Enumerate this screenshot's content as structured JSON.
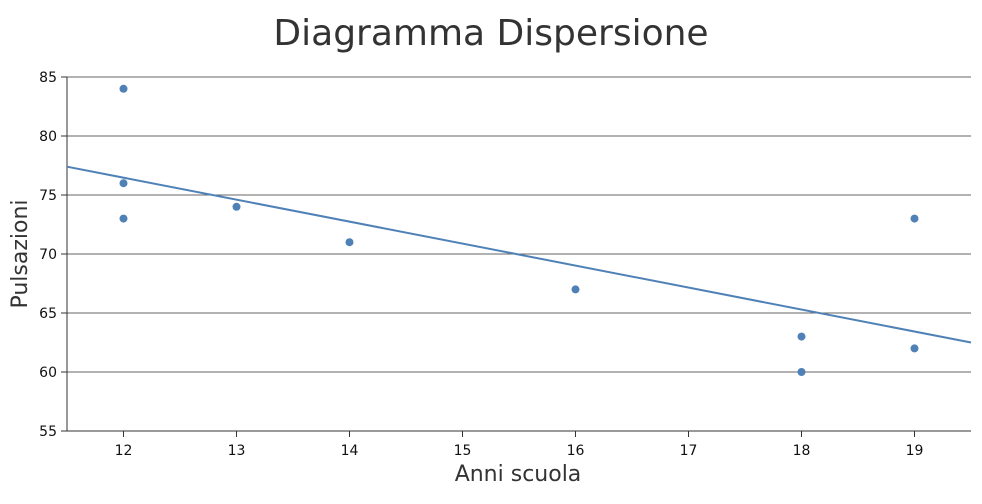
{
  "chart_data": {
    "type": "scatter",
    "title": "Diagramma Dispersione",
    "xlabel": "Anni scuola",
    "ylabel": "Pulsazioni",
    "xlim": [
      11.5,
      19.5
    ],
    "ylim": [
      55,
      85
    ],
    "x_ticks": [
      12,
      13,
      14,
      15,
      16,
      17,
      18,
      19
    ],
    "y_ticks": [
      55,
      60,
      65,
      70,
      75,
      80,
      85
    ],
    "grid": "horizontal",
    "legend": "none",
    "colors": {
      "points": "#4f81b7",
      "trendline": "#4f81b7",
      "grid": "#333333"
    },
    "series": [
      {
        "x": [
          12,
          12,
          12,
          13,
          14,
          16,
          18,
          18,
          19,
          19
        ],
        "y": [
          84,
          76,
          73,
          74,
          71,
          67,
          63,
          60,
          73,
          62
        ]
      }
    ],
    "trendline": {
      "x": [
        11.5,
        19.5
      ],
      "y": [
        77.4,
        62.5
      ]
    }
  }
}
